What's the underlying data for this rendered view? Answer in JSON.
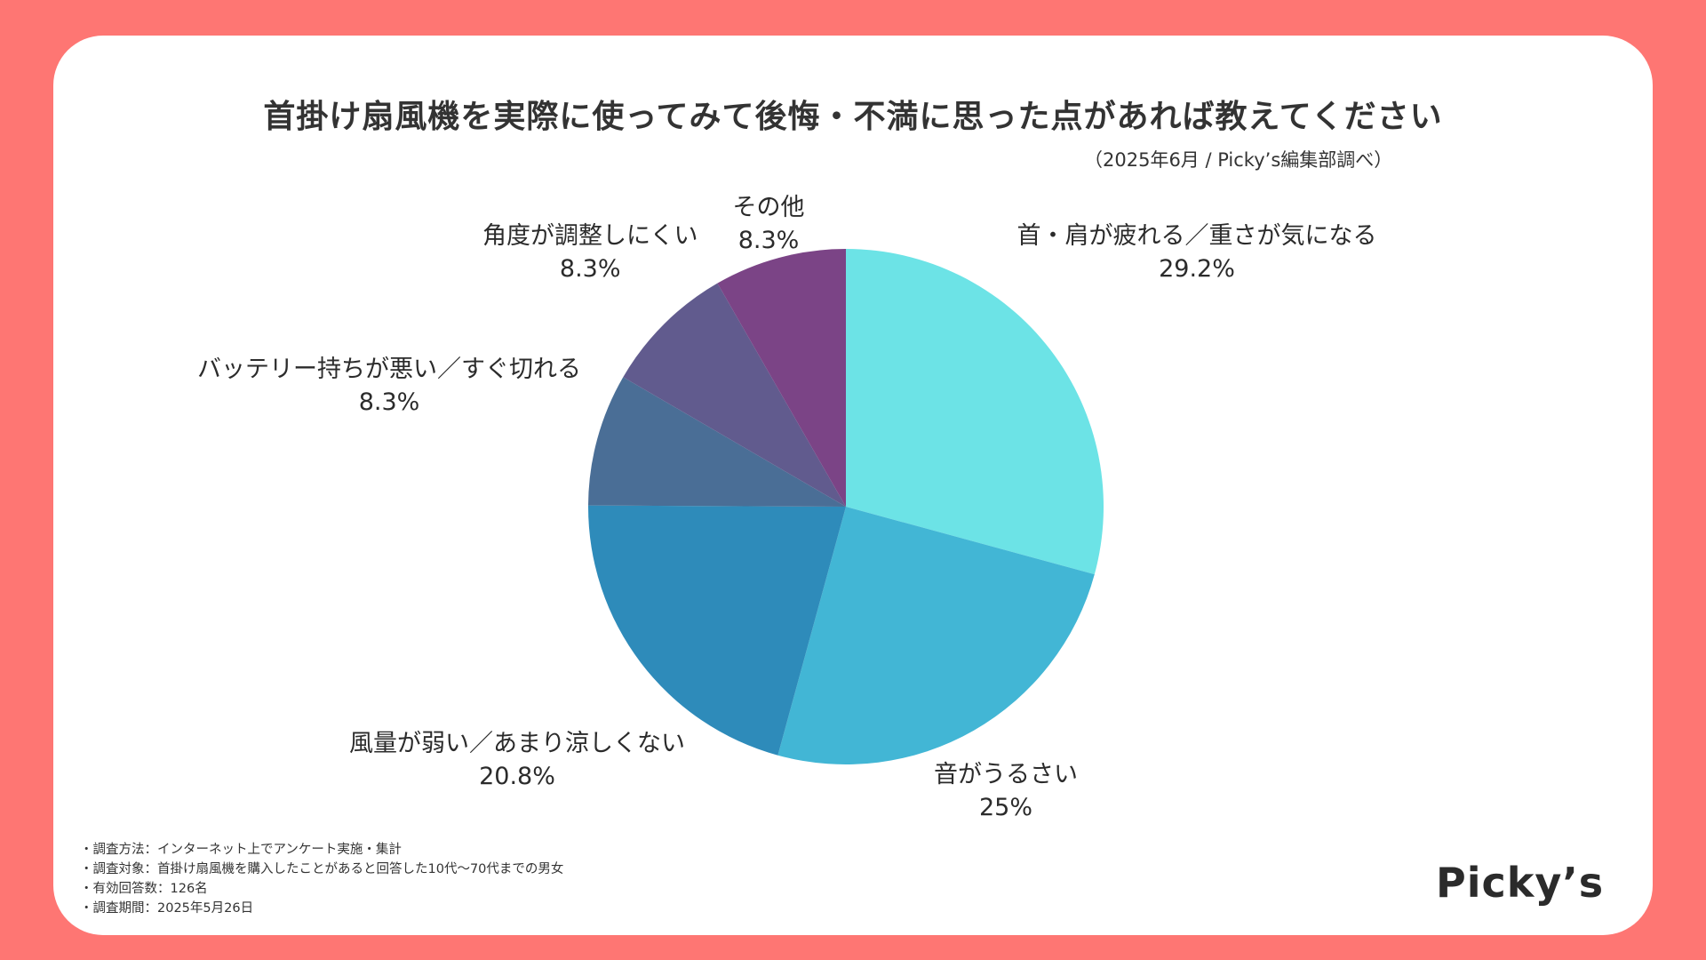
{
  "title": "首掛け扇風機を実際に使ってみて後悔・不満に思った点があれば教えてください",
  "subtitle": "（2025年6月 / Picky’s編集部調べ）",
  "chart_data": {
    "type": "pie",
    "title": "首掛け扇風機を実際に使ってみて後悔・不満に思った点があれば教えてください",
    "slices": [
      {
        "label": "首・肩が疲れる／重さが気になる",
        "value": 29.2,
        "display": "29.2%",
        "color": "#6ce3e6"
      },
      {
        "label": "音がうるさい",
        "value": 25,
        "display": "25%",
        "color": "#42b6d5"
      },
      {
        "label": "風量が弱い／あまり涼しくない",
        "value": 20.8,
        "display": "20.8%",
        "color": "#2e8bba"
      },
      {
        "label": "バッテリー持ちが悪い／すぐ切れる",
        "value": 8.3,
        "display": "8.3%",
        "color": "#4a6e96"
      },
      {
        "label": "角度が調整しにくい",
        "value": 8.3,
        "display": "8.3%",
        "color": "#615b8e"
      },
      {
        "label": "その他",
        "value": 8.3,
        "display": "8.3%",
        "color": "#7b4486"
      }
    ]
  },
  "notes": [
    "・調査方法：インターネット上でアンケート実施・集計",
    "・調査対象：首掛け扇風機を購入したことがあると回答した10代〜70代までの男女",
    "・有効回答数：126名",
    "・調査期間：2025年5月26日"
  ],
  "logo": "Picky’s"
}
